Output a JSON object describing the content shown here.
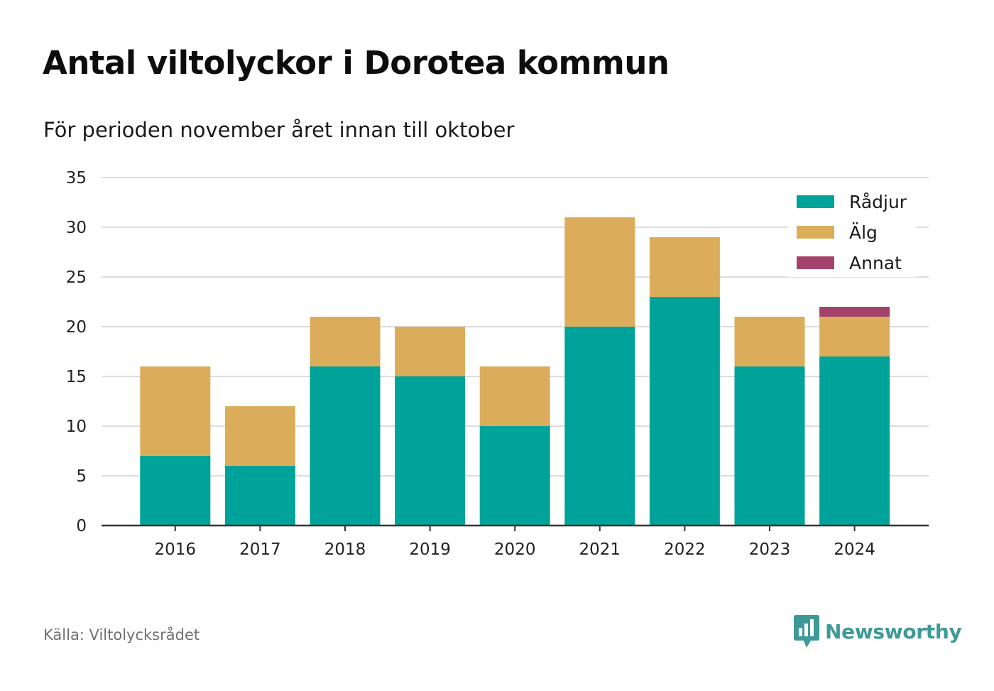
{
  "header": {
    "title": "Antal viltolyckor i Dorotea kommun",
    "subtitle": "För perioden november året innan till oktober"
  },
  "footer": {
    "source": "Källa: Viltolycksrådet",
    "brand": "Newsworthy",
    "brand_color": "#3d9a96",
    "brand_icon": "bar-chart-speech-bubble-icon"
  },
  "chart_data": {
    "type": "bar",
    "stacked": true,
    "categories": [
      "2016",
      "2017",
      "2018",
      "2019",
      "2020",
      "2021",
      "2022",
      "2023",
      "2024"
    ],
    "series": [
      {
        "name": "Rådjur",
        "color": "#00a39a",
        "values": [
          7,
          6,
          16,
          15,
          10,
          20,
          23,
          16,
          17
        ]
      },
      {
        "name": "Älg",
        "color": "#dbad5a",
        "values": [
          9,
          6,
          5,
          5,
          6,
          11,
          6,
          5,
          4
        ]
      },
      {
        "name": "Annat",
        "color": "#a4426b",
        "values": [
          0,
          0,
          0,
          0,
          0,
          0,
          0,
          0,
          1
        ]
      }
    ],
    "ylim": [
      0,
      35
    ],
    "yticks": [
      0,
      5,
      10,
      15,
      20,
      25,
      30,
      35
    ],
    "grid": true,
    "legend": "top-right",
    "xlabel": "",
    "ylabel": ""
  }
}
